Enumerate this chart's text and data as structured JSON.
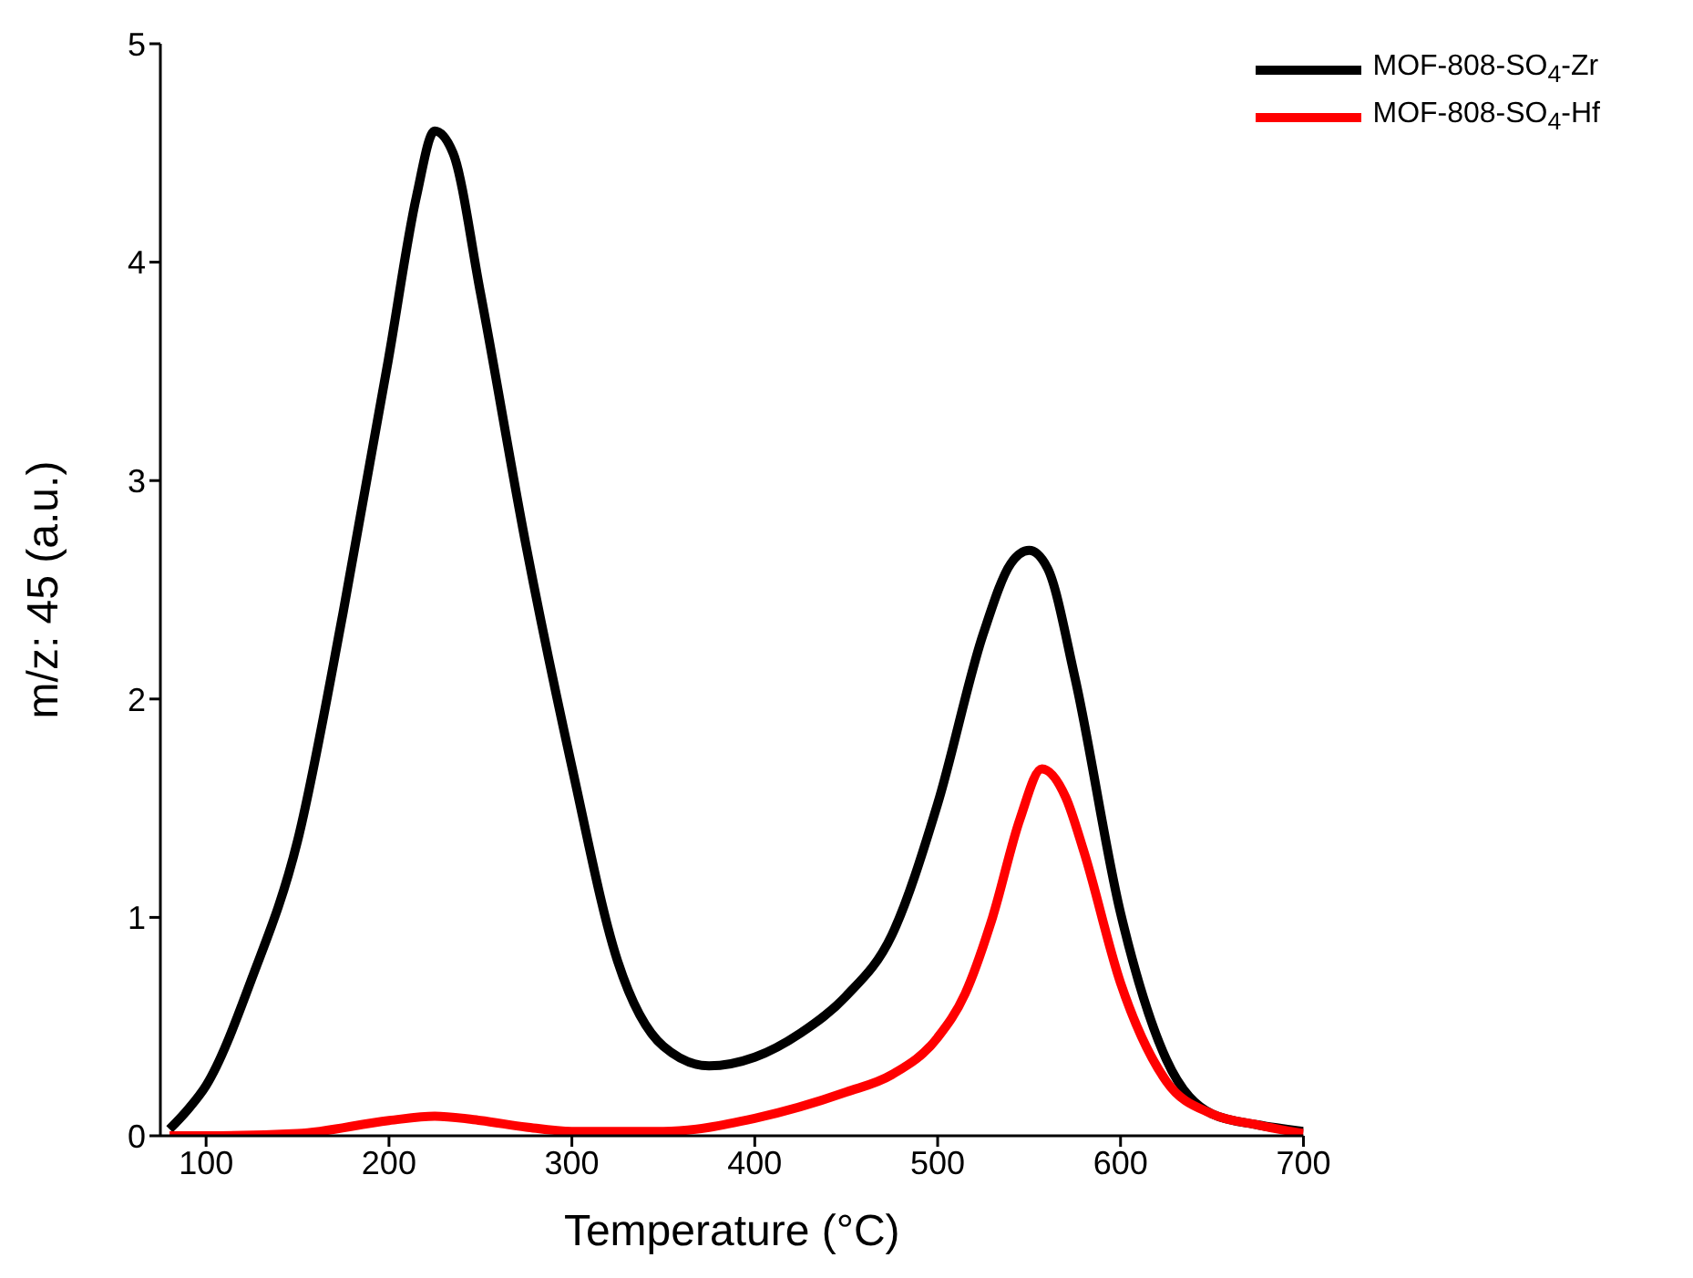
{
  "chart_data": {
    "type": "line",
    "xlabel": "Temperature (°C)",
    "ylabel": "m/z: 45 (a.u.)",
    "xlim": [
      75,
      700
    ],
    "ylim": [
      0,
      5
    ],
    "xticks": [
      100,
      200,
      300,
      400,
      500,
      600,
      700
    ],
    "yticks": [
      0,
      1,
      2,
      3,
      4,
      5
    ],
    "grid": false,
    "legend": "top right",
    "marker": "none",
    "line_style": "solid",
    "series": [
      {
        "name": "MOF-808-SO$_{4}$-Zr",
        "color": "#000000",
        "x": [
          80,
          90,
          100,
          125,
          150,
          175,
          200,
          215,
          225,
          235,
          250,
          275,
          300,
          325,
          350,
          375,
          400,
          425,
          450,
          475,
          500,
          525,
          540,
          550,
          560,
          575,
          600,
          625,
          650,
          675,
          700
        ],
        "values": [
          0.03,
          0.12,
          0.23,
          0.72,
          1.35,
          2.4,
          3.57,
          4.3,
          4.6,
          4.5,
          3.86,
          2.7,
          1.69,
          0.8,
          0.41,
          0.32,
          0.36,
          0.47,
          0.64,
          0.92,
          1.52,
          2.3,
          2.62,
          2.68,
          2.6,
          2.1,
          1.02,
          0.35,
          0.1,
          0.05,
          0.02
        ]
      },
      {
        "name": "MOF-808-SO$_{4}$-Hf",
        "color": "#ff0000",
        "x": [
          80,
          100,
          150,
          200,
          225,
          250,
          275,
          300,
          350,
          400,
          450,
          475,
          500,
          515,
          530,
          545,
          557,
          570,
          580,
          600,
          625,
          650,
          675,
          700
        ],
        "values": [
          0,
          0,
          0.01,
          0.07,
          0.09,
          0.07,
          0.04,
          0.02,
          0.02,
          0.08,
          0.2,
          0.28,
          0.45,
          0.65,
          1.0,
          1.45,
          1.68,
          1.55,
          1.3,
          0.7,
          0.25,
          0.1,
          0.05,
          0.01
        ]
      }
    ]
  }
}
